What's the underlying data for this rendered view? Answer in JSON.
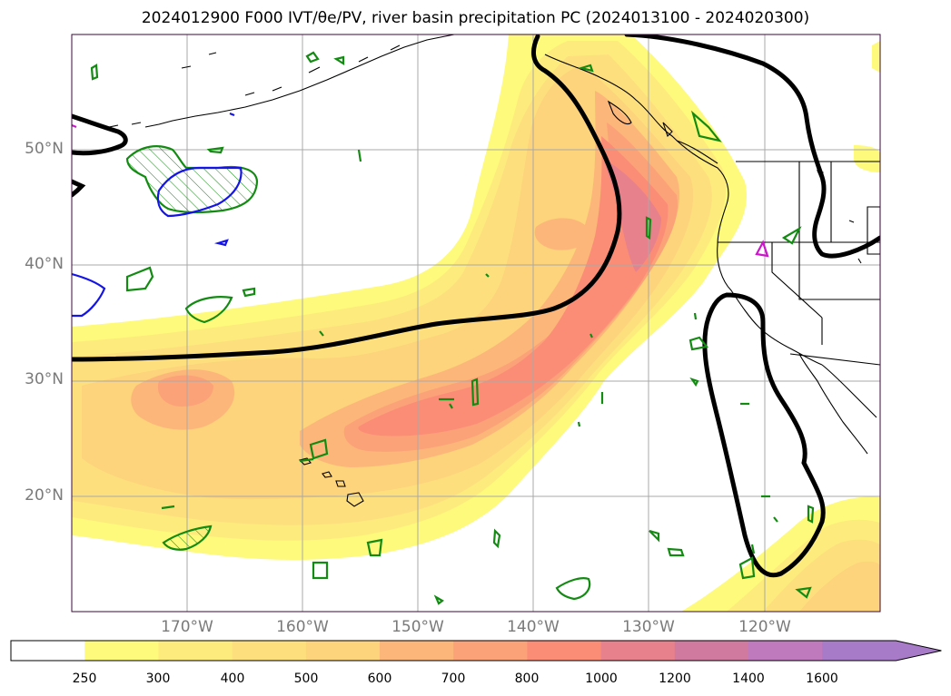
{
  "title": "2024012900 F000 IVT/θe/PV, river basin precipitation PC (2024013100 - 2024020300)",
  "lat_labels": [
    "50°N",
    "40°N",
    "30°N",
    "20°N"
  ],
  "lon_labels": [
    "170°W",
    "160°W",
    "150°W",
    "140°W",
    "130°W",
    "120°W"
  ],
  "colorbar": {
    "ticks": [
      "250",
      "300",
      "400",
      "500",
      "600",
      "700",
      "800",
      "1000",
      "1200",
      "1400",
      "1600"
    ],
    "colors": [
      "#ffffff",
      "#fefa7b",
      "#fdec7d",
      "#fde07d",
      "#fdd37c",
      "#fdb679",
      "#fca278",
      "#fb8d77",
      "#e7818c",
      "#d17a9f",
      "#be7abd",
      "#a87bc8"
    ],
    "extend": "max"
  },
  "colors": {
    "ivt_low": "#fefa7b",
    "ivt_mid": "#fdd37c",
    "ivt_high": "#fb8d77",
    "ivt_peak": "#e7818c",
    "theta_e_contour": "#000000",
    "pv_green": "#138b13",
    "pv_blue": "#1414e6",
    "pv_magenta": "#cc16cc"
  }
}
